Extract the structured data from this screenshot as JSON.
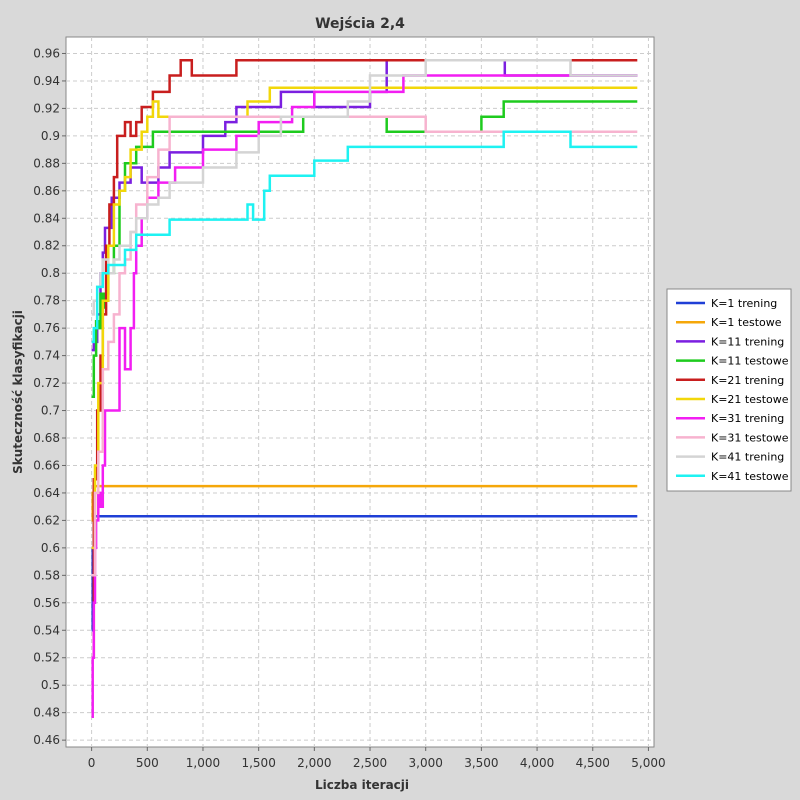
{
  "chart_data": {
    "type": "line",
    "title": "Wejścia 2,4",
    "xlabel": "Liczba iteracji",
    "ylabel": "Skuteczność klasyfikacji",
    "xlim": [
      -230,
      5050
    ],
    "ylim": [
      0.455,
      0.972
    ],
    "x_ticks": [
      0,
      500,
      1000,
      1500,
      2000,
      2500,
      3000,
      3500,
      4000,
      4500,
      5000
    ],
    "x_tick_labels": [
      "0",
      "500",
      "1,000",
      "1,500",
      "2,000",
      "2,500",
      "3,000",
      "3,500",
      "4,000",
      "4,500",
      "5,000"
    ],
    "y_ticks": [
      0.46,
      0.48,
      0.5,
      0.52,
      0.54,
      0.56,
      0.58,
      0.6,
      0.62,
      0.64,
      0.66,
      0.68,
      0.7,
      0.72,
      0.74,
      0.76,
      0.78,
      0.8,
      0.82,
      0.84,
      0.86,
      0.88,
      0.9,
      0.92,
      0.94,
      0.96
    ],
    "y_tick_labels": [
      "0.46",
      "0.48",
      "0.5",
      "0.52",
      "0.54",
      "0.56",
      "0.58",
      "0.6",
      "0.62",
      "0.64",
      "0.66",
      "0.68",
      "0.7",
      "0.72",
      "0.74",
      "0.76",
      "0.78",
      "0.8",
      "0.82",
      "0.84",
      "0.86",
      "0.88",
      "0.9",
      "0.92",
      "0.94",
      "0.96"
    ],
    "grid": true,
    "legend_position": "right",
    "series": [
      {
        "name": "K=1 trening",
        "color": "#1f3fd6",
        "x": [
          0,
          10,
          20,
          4900
        ],
        "y": [
          0.54,
          0.6,
          0.623,
          0.623
        ]
      },
      {
        "name": "K=1 testowe",
        "color": "#f5a70a",
        "x": [
          0,
          10,
          20,
          4900
        ],
        "y": [
          0.62,
          0.64,
          0.645,
          0.645
        ]
      },
      {
        "name": "K=11 trening",
        "color": "#7b1fe0",
        "x": [
          0,
          20,
          50,
          80,
          100,
          120,
          150,
          180,
          200,
          250,
          300,
          350,
          400,
          450,
          500,
          600,
          700,
          800,
          1000,
          1200,
          1300,
          1500,
          1700,
          2000,
          2500,
          2650,
          3000,
          3200,
          3500,
          3700,
          3710,
          4900
        ],
        "y": [
          0.744,
          0.75,
          0.77,
          0.8,
          0.815,
          0.833,
          0.833,
          0.855,
          0.855,
          0.866,
          0.866,
          0.877,
          0.877,
          0.866,
          0.866,
          0.877,
          0.888,
          0.888,
          0.9,
          0.91,
          0.921,
          0.921,
          0.932,
          0.921,
          0.932,
          0.955,
          0.955,
          0.955,
          0.955,
          0.955,
          0.944,
          0.944
        ]
      },
      {
        "name": "K=11 testowe",
        "color": "#1ecb1e",
        "x": [
          0,
          20,
          40,
          60,
          80,
          100,
          120,
          150,
          200,
          250,
          300,
          350,
          400,
          450,
          500,
          550,
          600,
          700,
          900,
          1100,
          1500,
          1900,
          2200,
          2600,
          2650,
          3000,
          3500,
          3700,
          4300,
          4900
        ],
        "y": [
          0.71,
          0.74,
          0.765,
          0.76,
          0.785,
          0.775,
          0.785,
          0.8,
          0.82,
          0.86,
          0.88,
          0.88,
          0.892,
          0.892,
          0.892,
          0.903,
          0.903,
          0.903,
          0.903,
          0.903,
          0.903,
          0.914,
          0.914,
          0.914,
          0.903,
          0.903,
          0.914,
          0.925,
          0.925,
          0.925
        ]
      },
      {
        "name": "K=21 trening",
        "color": "#c81e1e",
        "x": [
          0,
          20,
          50,
          80,
          100,
          130,
          160,
          200,
          230,
          260,
          300,
          350,
          400,
          450,
          500,
          550,
          600,
          700,
          800,
          900,
          1000,
          1200,
          1300,
          1500,
          2000,
          2500,
          3000,
          3500,
          4000,
          4500,
          4900
        ],
        "y": [
          0.52,
          0.65,
          0.7,
          0.74,
          0.77,
          0.82,
          0.85,
          0.87,
          0.9,
          0.9,
          0.91,
          0.9,
          0.91,
          0.921,
          0.921,
          0.932,
          0.932,
          0.944,
          0.955,
          0.944,
          0.944,
          0.944,
          0.955,
          0.955,
          0.955,
          0.955,
          0.955,
          0.955,
          0.955,
          0.955,
          0.955
        ]
      },
      {
        "name": "K=21 testowe",
        "color": "#f2d70a",
        "x": [
          0,
          30,
          60,
          100,
          150,
          200,
          250,
          300,
          350,
          400,
          450,
          500,
          550,
          600,
          800,
          1000,
          1200,
          1400,
          1600,
          2000,
          2500,
          3000,
          3500,
          4000,
          4500,
          4900
        ],
        "y": [
          0.6,
          0.66,
          0.72,
          0.78,
          0.82,
          0.85,
          0.86,
          0.87,
          0.89,
          0.89,
          0.903,
          0.914,
          0.925,
          0.914,
          0.914,
          0.914,
          0.914,
          0.925,
          0.935,
          0.935,
          0.935,
          0.935,
          0.935,
          0.935,
          0.935,
          0.935
        ]
      },
      {
        "name": "K=31 trening",
        "color": "#f21ef2",
        "x": [
          0,
          10,
          20,
          30,
          40,
          60,
          80,
          100,
          120,
          150,
          200,
          250,
          300,
          350,
          380,
          400,
          450,
          500,
          600,
          700,
          750,
          900,
          1000,
          1100,
          1300,
          1500,
          1800,
          2000,
          2300,
          2800,
          3000,
          3500,
          4000,
          4300,
          4900
        ],
        "y": [
          0.477,
          0.52,
          0.56,
          0.6,
          0.62,
          0.64,
          0.63,
          0.66,
          0.7,
          0.7,
          0.7,
          0.76,
          0.73,
          0.76,
          0.8,
          0.82,
          0.84,
          0.855,
          0.866,
          0.866,
          0.877,
          0.877,
          0.89,
          0.89,
          0.9,
          0.91,
          0.921,
          0.932,
          0.932,
          0.944,
          0.944,
          0.944,
          0.944,
          0.944,
          0.944
        ]
      },
      {
        "name": "K=31 testowe",
        "color": "#f7b3cf",
        "x": [
          0,
          30,
          60,
          100,
          150,
          200,
          250,
          300,
          350,
          400,
          500,
          600,
          700,
          1000,
          1300,
          1600,
          2000,
          2500,
          2800,
          3000,
          3500,
          4000,
          4500,
          4900
        ],
        "y": [
          0.58,
          0.64,
          0.67,
          0.73,
          0.75,
          0.77,
          0.8,
          0.81,
          0.83,
          0.85,
          0.87,
          0.89,
          0.914,
          0.914,
          0.914,
          0.914,
          0.914,
          0.914,
          0.914,
          0.903,
          0.903,
          0.903,
          0.903,
          0.903
        ]
      },
      {
        "name": "K=41 trening",
        "color": "#d4d4d4",
        "x": [
          0,
          20,
          50,
          80,
          100,
          150,
          200,
          250,
          300,
          350,
          400,
          500,
          600,
          700,
          800,
          1000,
          1100,
          1300,
          1500,
          1700,
          2000,
          2300,
          2500,
          3000,
          3500,
          4000,
          4300,
          4900
        ],
        "y": [
          0.77,
          0.78,
          0.79,
          0.8,
          0.81,
          0.8,
          0.81,
          0.82,
          0.82,
          0.83,
          0.84,
          0.85,
          0.855,
          0.866,
          0.866,
          0.877,
          0.877,
          0.888,
          0.9,
          0.914,
          0.914,
          0.925,
          0.944,
          0.955,
          0.955,
          0.955,
          0.944,
          0.944
        ]
      },
      {
        "name": "K=41 testowe",
        "color": "#1ef2f2",
        "x": [
          0,
          20,
          50,
          100,
          150,
          200,
          300,
          400,
          500,
          600,
          700,
          750,
          1000,
          1300,
          1400,
          1450,
          1500,
          1550,
          1600,
          1800,
          2000,
          2300,
          2500,
          3000,
          3500,
          3700,
          4300,
          4900
        ],
        "y": [
          0.75,
          0.76,
          0.79,
          0.8,
          0.806,
          0.806,
          0.817,
          0.828,
          0.828,
          0.828,
          0.839,
          0.839,
          0.839,
          0.839,
          0.85,
          0.839,
          0.839,
          0.86,
          0.871,
          0.871,
          0.882,
          0.892,
          0.892,
          0.892,
          0.892,
          0.903,
          0.892,
          0.892
        ]
      }
    ]
  }
}
